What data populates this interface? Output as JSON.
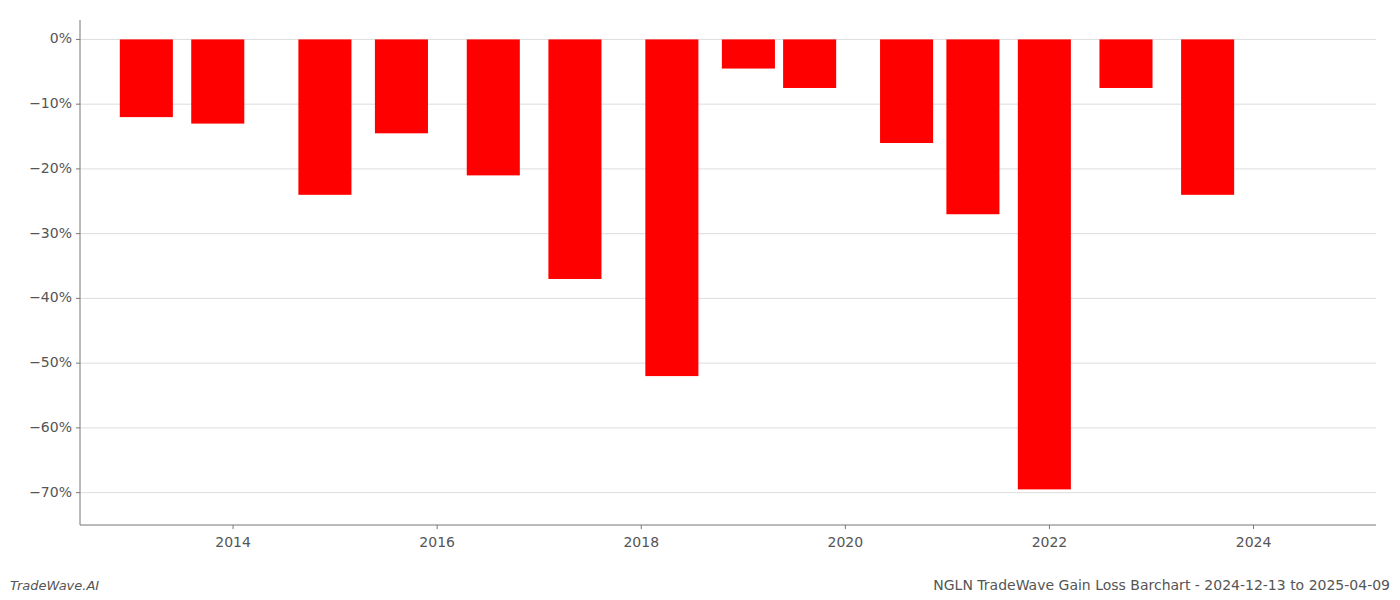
{
  "chart_data": {
    "type": "bar",
    "title": "NGLN TradeWave Gain Loss Barchart - 2024-12-13 to 2025-04-09",
    "annotations": [
      "TradeWave.AI"
    ],
    "x": [
      2013.15,
      2013.85,
      2014.9,
      2015.65,
      2016.55,
      2017.35,
      2018.3,
      2019.05,
      2019.65,
      2020.6,
      2021.25,
      2021.95,
      2022.75,
      2023.55
    ],
    "values": [
      -12.0,
      -13.0,
      -24.0,
      -14.5,
      -21.0,
      -37.0,
      -52.0,
      -4.5,
      -7.5,
      -16.0,
      -27.0,
      -69.5,
      -7.5,
      -24.0
    ],
    "color": "#ff0000",
    "xlim": [
      2012.5,
      2025.2
    ],
    "xticks": [
      2014,
      2016,
      2018,
      2020,
      2022,
      2024
    ],
    "ylim": [
      -75,
      3
    ],
    "yticks": [
      {
        "value": 0,
        "label": "0%"
      },
      {
        "value": -10,
        "label": "−10%"
      },
      {
        "value": -20,
        "label": "−20%"
      },
      {
        "value": -30,
        "label": "−30%"
      },
      {
        "value": -40,
        "label": "−40%"
      },
      {
        "value": -50,
        "label": "−50%"
      },
      {
        "value": -60,
        "label": "−60%"
      },
      {
        "value": -70,
        "label": "−70%"
      }
    ],
    "grid": true
  }
}
